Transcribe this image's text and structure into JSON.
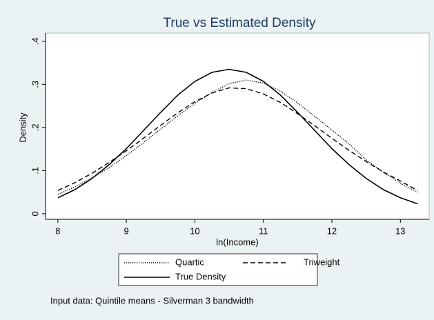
{
  "chart_data": {
    "type": "line",
    "title": "True vs Estimated Density",
    "x_label": "ln(Income)",
    "y_label": "Density",
    "note": "Input data: Quintile means - Silverman 3 bandwidth",
    "x": [
      8,
      8.25,
      8.5,
      8.75,
      9,
      9.25,
      9.5,
      9.75,
      10,
      10.25,
      10.5,
      10.75,
      11,
      11.25,
      11.5,
      11.75,
      12,
      12.25,
      12.5,
      12.75,
      13,
      13.25
    ],
    "series": [
      {
        "name": "Quartic",
        "color": "#000000",
        "dash": "dotted",
        "values": [
          0.045,
          0.062,
          0.083,
          0.107,
          0.135,
          0.165,
          0.196,
          0.227,
          0.256,
          0.281,
          0.302,
          0.31,
          0.303,
          0.284,
          0.257,
          0.226,
          0.194,
          0.162,
          0.125,
          0.096,
          0.071,
          0.05
        ]
      },
      {
        "name": "Triweight",
        "color": "#000000",
        "dash": "dashed",
        "values": [
          0.054,
          0.072,
          0.094,
          0.119,
          0.146,
          0.175,
          0.205,
          0.234,
          0.26,
          0.28,
          0.292,
          0.29,
          0.278,
          0.258,
          0.232,
          0.204,
          0.175,
          0.147,
          0.121,
          0.097,
          0.076,
          0.054
        ]
      },
      {
        "name": "True Density",
        "color": "#000000",
        "dash": "solid",
        "values": [
          0.037,
          0.056,
          0.082,
          0.114,
          0.151,
          0.193,
          0.235,
          0.275,
          0.307,
          0.328,
          0.335,
          0.328,
          0.307,
          0.275,
          0.235,
          0.193,
          0.151,
          0.114,
          0.082,
          0.056,
          0.037,
          0.023
        ]
      }
    ],
    "xlim": [
      7.82,
      13.42
    ],
    "ylim": [
      -0.013,
      0.419
    ],
    "xticks": [
      8,
      9,
      10,
      11,
      12,
      13
    ],
    "yticks": [
      0,
      {
        "value": 0.1,
        "label": ".1"
      },
      {
        "value": 0.2,
        "label": ".2"
      },
      {
        "value": 0.3,
        "label": ".3"
      },
      {
        "value": 0.4,
        "label": ".4"
      }
    ],
    "grid": false,
    "legend": "bottom"
  }
}
